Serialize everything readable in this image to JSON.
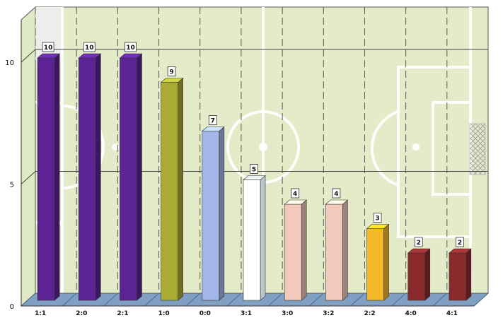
{
  "chart_data": {
    "type": "bar",
    "categories": [
      "1:1",
      "2:0",
      "2:1",
      "1:0",
      "0:0",
      "3:1",
      "3:0",
      "3:2",
      "2:2",
      "4:0",
      "4:1"
    ],
    "values": [
      10,
      10,
      10,
      9,
      7,
      5,
      4,
      4,
      3,
      2,
      2
    ],
    "data_labels": [
      "10",
      "10",
      "10",
      "9",
      "7",
      "5",
      "4",
      "4",
      "3",
      "2",
      "2"
    ],
    "y_ticks": [
      "0",
      "5",
      "10"
    ],
    "ylim": [
      0,
      12
    ],
    "grid": true,
    "colors": [
      "#5c2394",
      "#5c2394",
      "#5c2394",
      "#a9ab35",
      "#a3b6e8",
      "#ffffff",
      "#f1cabb",
      "#f1cabb",
      "#f6b82b",
      "#8b2a2c",
      "#8b2a2c"
    ],
    "background": "football pitch"
  }
}
